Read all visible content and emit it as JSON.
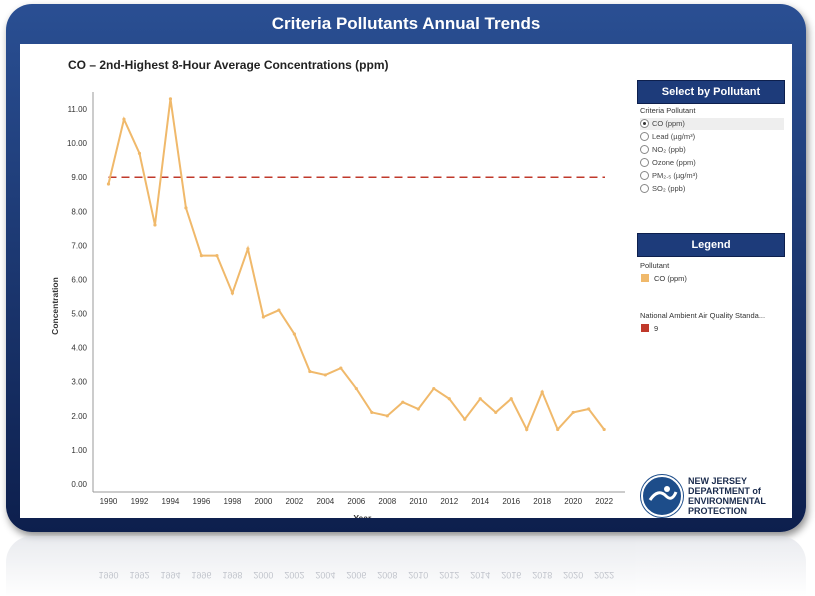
{
  "app_title": "Criteria Pollutants Annual Trends",
  "chart_title": "CO – 2nd-Highest 8-Hour Average Concentrations (ppm)",
  "chart_data": {
    "type": "line",
    "title": "CO – 2nd-Highest 8-Hour Average Concentrations (ppm)",
    "xlabel": "Year",
    "ylabel": "Concentration",
    "ylim": [
      0,
      11.5
    ],
    "x": [
      1990,
      1991,
      1992,
      1993,
      1994,
      1995,
      1996,
      1997,
      1998,
      1999,
      2000,
      2001,
      2002,
      2003,
      2004,
      2005,
      2006,
      2007,
      2008,
      2009,
      2010,
      2011,
      2012,
      2013,
      2014,
      2015,
      2016,
      2017,
      2018,
      2019,
      2020,
      2021,
      2022
    ],
    "series": [
      {
        "name": "CO (ppm)",
        "color": "#f0b96b",
        "values": [
          8.8,
          10.7,
          9.7,
          7.6,
          11.3,
          8.1,
          6.7,
          6.7,
          5.6,
          6.9,
          4.9,
          5.1,
          4.4,
          3.3,
          3.2,
          3.4,
          2.8,
          2.1,
          2.0,
          2.4,
          2.2,
          2.8,
          2.5,
          1.9,
          2.5,
          2.1,
          2.5,
          1.6,
          2.7,
          1.6,
          2.1,
          2.2,
          1.6
        ]
      }
    ],
    "reference_line": {
      "name": "9",
      "value": 9,
      "color": "#c0392b",
      "style": "dashed"
    },
    "yticks": [
      "0.00",
      "1.00",
      "2.00",
      "3.00",
      "4.00",
      "5.00",
      "6.00",
      "7.00",
      "8.00",
      "9.00",
      "10.00",
      "11.00"
    ],
    "ytick_values": [
      0,
      1,
      2,
      3,
      4,
      5,
      6,
      7,
      8,
      9,
      10,
      11
    ],
    "xticks": [
      "1990",
      "1992",
      "1994",
      "1996",
      "1998",
      "2000",
      "2002",
      "2004",
      "2006",
      "2008",
      "2010",
      "2012",
      "2014",
      "2016",
      "2018",
      "2020",
      "2022"
    ],
    "xtick_values": [
      1990,
      1992,
      1994,
      1996,
      1998,
      2000,
      2002,
      2004,
      2006,
      2008,
      2010,
      2012,
      2014,
      2016,
      2018,
      2020,
      2022
    ],
    "grid": false
  },
  "select_panel": {
    "header": "Select by Pollutant",
    "label": "Criteria Pollutant",
    "options": [
      "CO (ppm)",
      "Lead (µg/m³)",
      "NO₂ (ppb)",
      "Ozone (ppm)",
      "PM₂.₅ (µg/m³)",
      "SO₂ (ppb)"
    ],
    "selected": "CO (ppm)"
  },
  "legend": {
    "header": "Legend",
    "pollutant_label": "Pollutant",
    "pollutant_item": "CO (ppm)",
    "pollutant_color": "#f0b96b",
    "standard_label": "National Ambient Air Quality Standa...",
    "standard_item": "9",
    "standard_color": "#c0392b"
  },
  "logo": {
    "line1": "NEW JERSEY",
    "line2": "DEPARTMENT of",
    "line3": "ENVIRONMENTAL",
    "line4": "PROTECTION"
  }
}
